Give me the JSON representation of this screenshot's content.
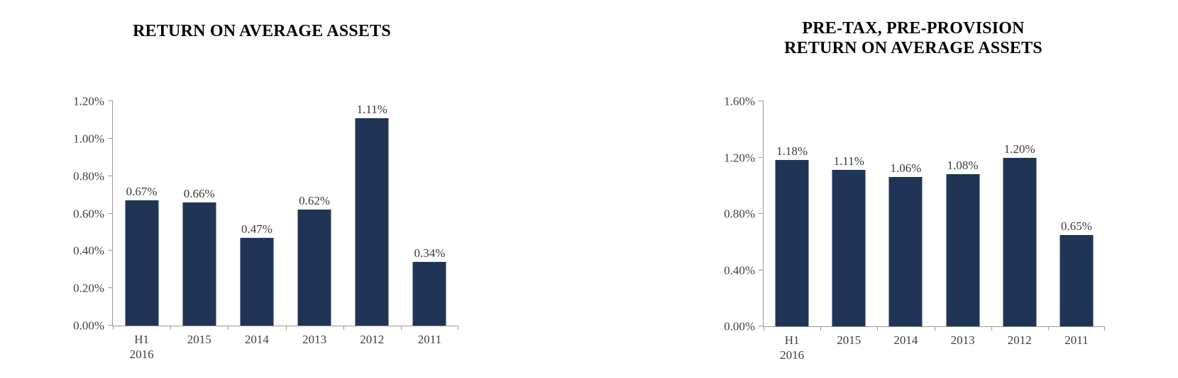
{
  "page": {
    "background": "#ffffff"
  },
  "styles": {
    "bar_color": "#203556",
    "axis_color": "#9a9a9a",
    "tick_label_color": "#3f3f3f",
    "value_label_color": "#3a3a3a",
    "title_color": "#000000"
  },
  "chart_data": [
    {
      "type": "bar",
      "title": "RETURN ON AVERAGE ASSETS",
      "categories": [
        "H1 2016",
        "2015",
        "2014",
        "2013",
        "2012",
        "2011"
      ],
      "category_display": [
        "H1\n2016",
        "2015",
        "2014",
        "2013",
        "2012",
        "2011"
      ],
      "values": [
        0.67,
        0.66,
        0.47,
        0.62,
        1.11,
        0.34
      ],
      "value_labels": [
        "0.67%",
        "0.66%",
        "0.47%",
        "0.62%",
        "1.11%",
        "0.34%"
      ],
      "xlabel": "",
      "ylabel": "",
      "ylim": [
        0,
        1.2
      ],
      "ytick_step": 0.2,
      "ytick_labels": [
        "0.00%",
        "0.20%",
        "0.40%",
        "0.60%",
        "0.80%",
        "1.00%",
        "1.20%"
      ],
      "grid": false,
      "legend": "none"
    },
    {
      "type": "bar",
      "title": "PRE-TAX, PRE-PROVISION\nRETURN ON AVERAGE ASSETS",
      "categories": [
        "H1 2016",
        "2015",
        "2014",
        "2013",
        "2012",
        "2011"
      ],
      "category_display": [
        "H1\n2016",
        "2015",
        "2014",
        "2013",
        "2012",
        "2011"
      ],
      "values": [
        1.18,
        1.11,
        1.06,
        1.08,
        1.2,
        0.65
      ],
      "value_labels": [
        "1.18%",
        "1.11%",
        "1.06%",
        "1.08%",
        "1.20%",
        "0.65%"
      ],
      "xlabel": "",
      "ylabel": "",
      "ylim": [
        0,
        1.6
      ],
      "ytick_step": 0.4,
      "ytick_labels": [
        "0.00%",
        "0.40%",
        "0.80%",
        "1.20%",
        "1.60%"
      ],
      "grid": false,
      "legend": "none"
    }
  ]
}
